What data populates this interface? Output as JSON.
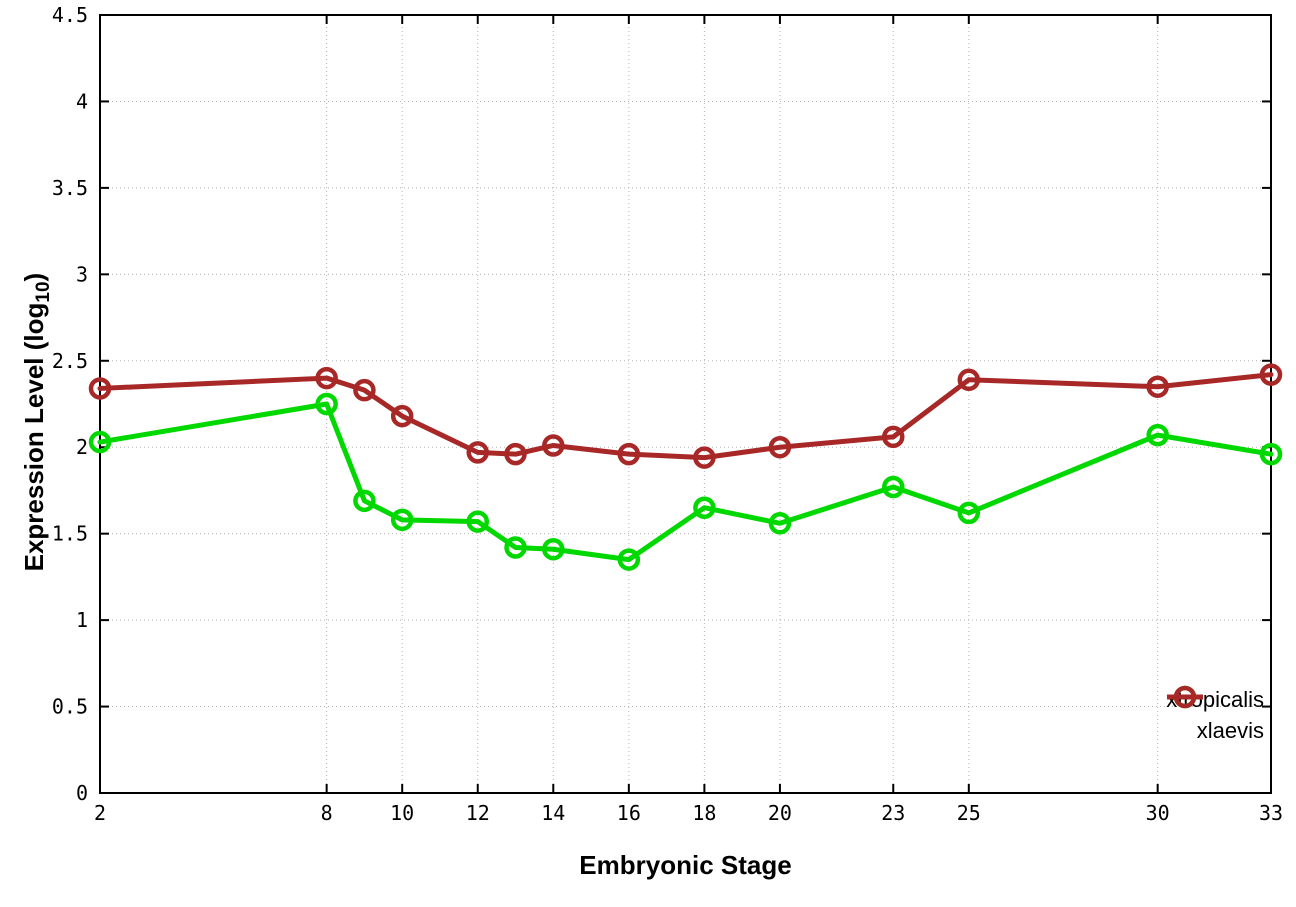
{
  "labels": {
    "x": "Embryonic Stage",
    "y_prefix": "Expression Level (log",
    "y_sub": "10",
    "y_suffix": ")"
  },
  "chart_data": {
    "type": "line",
    "title": "",
    "xlabel": "Embryonic Stage",
    "ylabel": "Expression Level (log10)",
    "xlim": [
      2,
      33
    ],
    "ylim": [
      0,
      4.5
    ],
    "grid": true,
    "gridline_color": "#b4b4b4",
    "axis_color": "#000000",
    "legend_position": "bottom-right",
    "x": [
      2,
      8,
      9,
      10,
      12,
      13,
      14,
      16,
      18,
      20,
      23,
      25,
      30,
      33
    ],
    "xticks": [
      {
        "v": 2,
        "label": "2"
      },
      {
        "v": 8,
        "label": "8"
      },
      {
        "v": 10,
        "label": "10"
      },
      {
        "v": 12,
        "label": "12"
      },
      {
        "v": 14,
        "label": "14"
      },
      {
        "v": 16,
        "label": "16"
      },
      {
        "v": 18,
        "label": "18"
      },
      {
        "v": 20,
        "label": "20"
      },
      {
        "v": 23,
        "label": "23"
      },
      {
        "v": 25,
        "label": "25"
      },
      {
        "v": 30,
        "label": "30"
      },
      {
        "v": 33,
        "label": "33"
      }
    ],
    "yticks": [
      {
        "v": 0,
        "label": "0"
      },
      {
        "v": 0.5,
        "label": "0.5"
      },
      {
        "v": 1,
        "label": "1"
      },
      {
        "v": 1.5,
        "label": "1.5"
      },
      {
        "v": 2,
        "label": "2"
      },
      {
        "v": 2.5,
        "label": "2.5"
      },
      {
        "v": 3,
        "label": "3"
      },
      {
        "v": 3.5,
        "label": "3.5"
      },
      {
        "v": 4,
        "label": "4"
      },
      {
        "v": 4.5,
        "label": "4.5"
      }
    ],
    "series": [
      {
        "name": "xtropicalis",
        "color": "#00d800",
        "marker": "open-circle",
        "values": [
          2.03,
          2.25,
          1.69,
          1.58,
          1.57,
          1.42,
          1.41,
          1.35,
          1.65,
          1.56,
          1.77,
          1.62,
          2.07,
          1.96
        ]
      },
      {
        "name": "xlaevis",
        "color": "#a82828",
        "marker": "open-circle",
        "values": [
          2.34,
          2.4,
          2.33,
          2.18,
          1.97,
          1.96,
          2.01,
          1.96,
          1.94,
          2.0,
          2.06,
          2.39,
          2.35,
          2.42
        ]
      }
    ]
  }
}
